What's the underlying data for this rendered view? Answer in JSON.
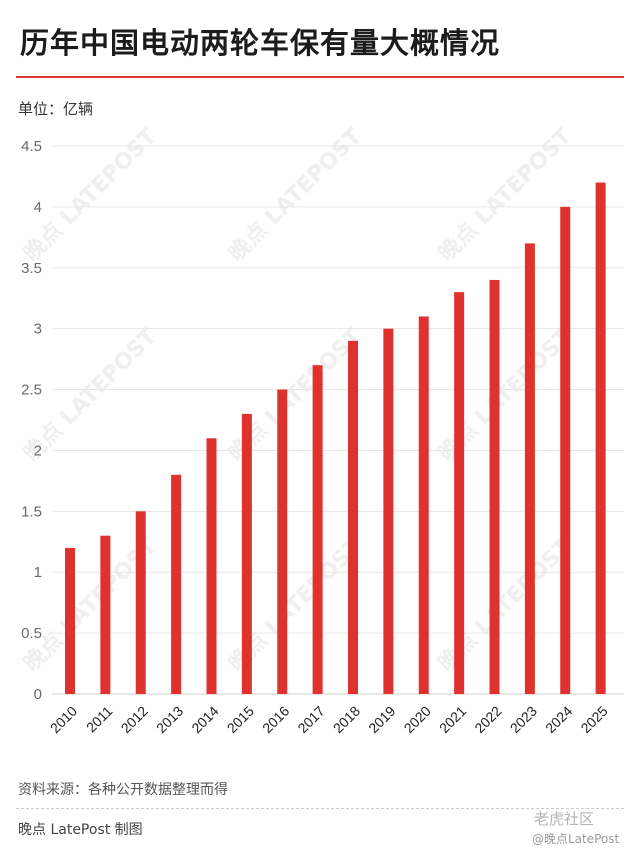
{
  "title": "历年中国电动两轮车保有量大概情况",
  "unit_label": "单位：亿辆",
  "source": "资料来源：各种公开数据整理而得",
  "credit": "晚点 LatePost 制图",
  "watermark": {
    "community": "老虎社区",
    "handle": "@晚点LatePost",
    "background_text": "晚点 LATEPOST"
  },
  "colors": {
    "bar": "#e0322d",
    "title_rule": "#d93a35",
    "grid": "#e6e6e6"
  },
  "chart_data": {
    "type": "bar",
    "categories": [
      "2010",
      "2011",
      "2012",
      "2013",
      "2014",
      "2015",
      "2016",
      "2017",
      "2018",
      "2019",
      "2020",
      "2021",
      "2022",
      "2023",
      "2024",
      "2025"
    ],
    "values": [
      1.2,
      1.3,
      1.5,
      1.8,
      2.1,
      2.3,
      2.5,
      2.7,
      2.9,
      3.0,
      3.1,
      3.3,
      3.4,
      3.7,
      4.0,
      4.2
    ],
    "ylim": [
      0,
      4.5
    ],
    "yticks": [
      "0",
      "0.5",
      "1",
      "1.5",
      "2",
      "2.5",
      "3",
      "3.5",
      "4",
      "4.5"
    ],
    "grid": true,
    "title": "历年中国电动两轮车保有量大概情况",
    "ylabel": "单位：亿辆",
    "xlabel": ""
  }
}
